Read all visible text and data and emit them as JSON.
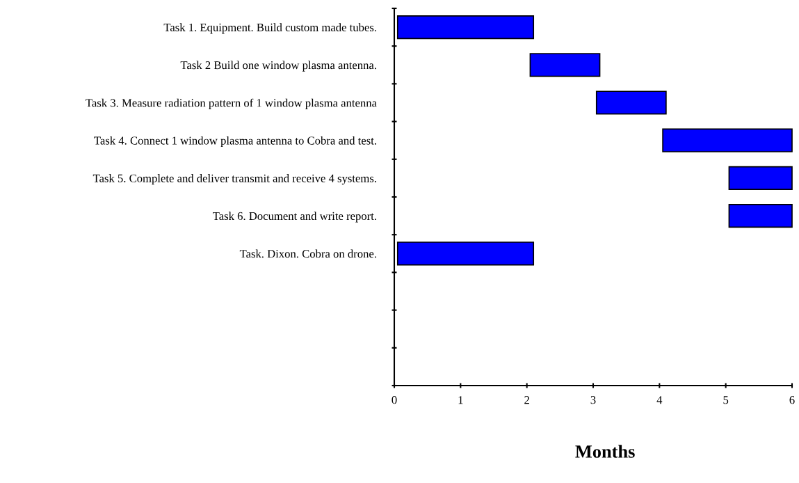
{
  "chart_data": {
    "type": "bar",
    "orientation": "horizontal",
    "xlabel": "Months",
    "categories": [
      "Task 1. Equipment. Build custom made tubes.",
      "Task 2 Build one window plasma antenna.",
      "Task 3. Measure radiation pattern of 1 window plasma antenna",
      "Task 4. Connect 1 window plasma antenna to Cobra and test.",
      "Task 5. Complete and deliver transmit and receive 4 systems.",
      "Task 6. Document and write report.",
      "Task. Dixon. Cobra on drone.",
      null,
      null,
      null
    ],
    "base": [
      0.05,
      2.05,
      3.05,
      4.05,
      5.05,
      5.05,
      0.05,
      null,
      null,
      null
    ],
    "values": [
      2.05,
      1.05,
      1.05,
      1.95,
      0.95,
      0.95,
      2.05,
      null,
      null,
      null
    ],
    "color": "#0000ff",
    "xlim": [
      0,
      6
    ],
    "xticks": [
      0,
      1,
      2,
      3,
      4,
      5,
      6
    ],
    "grid": false
  }
}
